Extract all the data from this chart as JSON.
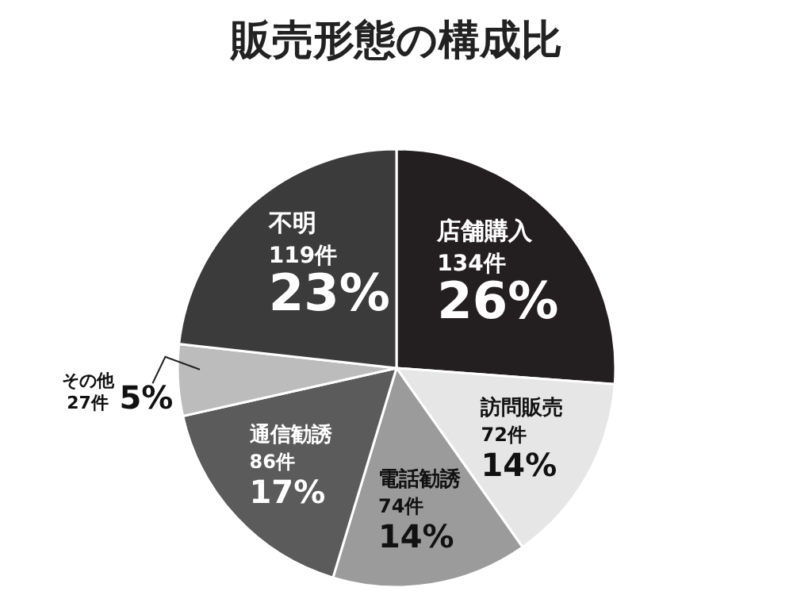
{
  "chart_data": {
    "type": "pie",
    "title": "販売形態の構成比",
    "categories": [
      "店舗購入",
      "訪問販売",
      "電話勧誘",
      "通信勧誘",
      "その他",
      "不明"
    ],
    "values": [
      134,
      72,
      74,
      86,
      27,
      119
    ],
    "value_labels": [
      "134件 26%",
      "72件 14%",
      "74件 14%",
      "86件 17%",
      "27件 5%",
      "119件 23%"
    ],
    "colors": [
      "#231f20",
      "#e6e6e6",
      "#9b9b9b",
      "#5b5b5b",
      "#bcbcbc",
      "#3b3b3b"
    ]
  }
}
